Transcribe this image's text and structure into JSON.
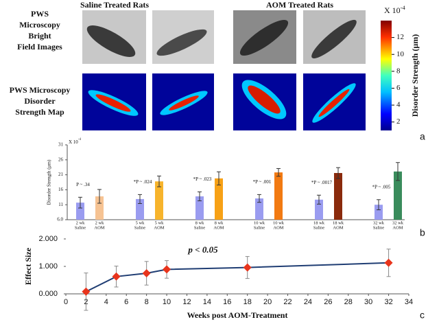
{
  "panel_a": {
    "column_labels": [
      "Saline Treated Rats",
      "AOM Treated Rats"
    ],
    "row_labels": [
      [
        "PWS",
        "Microscopy",
        "Bright",
        "Field Images"
      ],
      [
        "PWS Microscopy",
        "Disorder",
        "Strength Map"
      ]
    ],
    "colorbar": {
      "label": "Disorder Strength (µm)",
      "multiplier": {
        "base": "X 10",
        "exponent": "-4"
      },
      "lim": [
        1,
        14
      ],
      "ticks": [
        2,
        4,
        6,
        8,
        10,
        12
      ]
    }
  },
  "panel_labels": [
    "a",
    "b",
    "c"
  ],
  "chart_data": [
    {
      "type": "bar",
      "ylabel": "Disorder Strength (µm)",
      "multiplier": {
        "base": "X 10",
        "exponent": "-4"
      },
      "categories": [
        [
          "2 wk",
          "Saline"
        ],
        [
          "2 wk",
          "AOM"
        ],
        [
          "5 wk",
          "Saline"
        ],
        [
          "5 wk",
          "AOM"
        ],
        [
          "8 wk",
          "Saline"
        ],
        [
          "8 wk",
          "AOM"
        ],
        [
          "10 wk",
          "Saline"
        ],
        [
          "10 wk",
          "AOM"
        ],
        [
          "18 wk",
          "Saline"
        ],
        [
          "18 wk",
          "AOM"
        ],
        [
          "32 wk",
          "Saline"
        ],
        [
          "32 wk",
          "AOM"
        ]
      ],
      "values": [
        11.7,
        13.8,
        12.9,
        18.8,
        13.8,
        19.8,
        13.1,
        21.8,
        12.7,
        21.6,
        11.0,
        22.1
      ],
      "errors": [
        1.8,
        2.3,
        1.5,
        1.8,
        1.5,
        2.2,
        1.3,
        1.3,
        1.5,
        1.8,
        1.7,
        3.0
      ],
      "colors": [
        "#9a9cf0",
        "#f6c393",
        "#9a9cf0",
        "#f7b42c",
        "#9a9cf0",
        "#f7a116",
        "#9a9cf0",
        "#f27a12",
        "#9a9cf0",
        "#8a2a0c",
        "#9a9cf0",
        "#3a8c5c"
      ],
      "ylim": [
        6,
        31
      ],
      "yticks": [
        {
          "value": 6,
          "label": "6.0"
        },
        11,
        16,
        21,
        26,
        31
      ],
      "annotations": [
        "P ~ .34",
        "*P ~ .024",
        "*P ~ .023",
        "*P ~ .001",
        "*P ~ .0017",
        "*P ~ .005"
      ]
    },
    {
      "type": "line",
      "xlabel": "Weeks post AOM-Treatment",
      "ylabel": "Effect Size",
      "annotation": "p < 0.05",
      "x": [
        2,
        5,
        8,
        10,
        18,
        32
      ],
      "values": [
        0.08,
        0.63,
        0.75,
        0.89,
        0.96,
        1.13
      ],
      "errors": [
        0.68,
        0.38,
        0.43,
        0.32,
        0.4,
        0.5
      ],
      "color": "#1f3d73",
      "marker_color": "#e8341c",
      "xlim": [
        0,
        34
      ],
      "xticks": [
        0,
        2,
        4,
        6,
        8,
        10,
        12,
        14,
        16,
        18,
        20,
        22,
        24,
        26,
        28,
        30,
        32,
        34
      ],
      "ylim": [
        0,
        2
      ],
      "yticks": [
        {
          "value": 0,
          "label": "0.000"
        },
        {
          "value": 1,
          "label": "1.000"
        },
        {
          "value": 2,
          "label": "2.000"
        }
      ]
    }
  ]
}
